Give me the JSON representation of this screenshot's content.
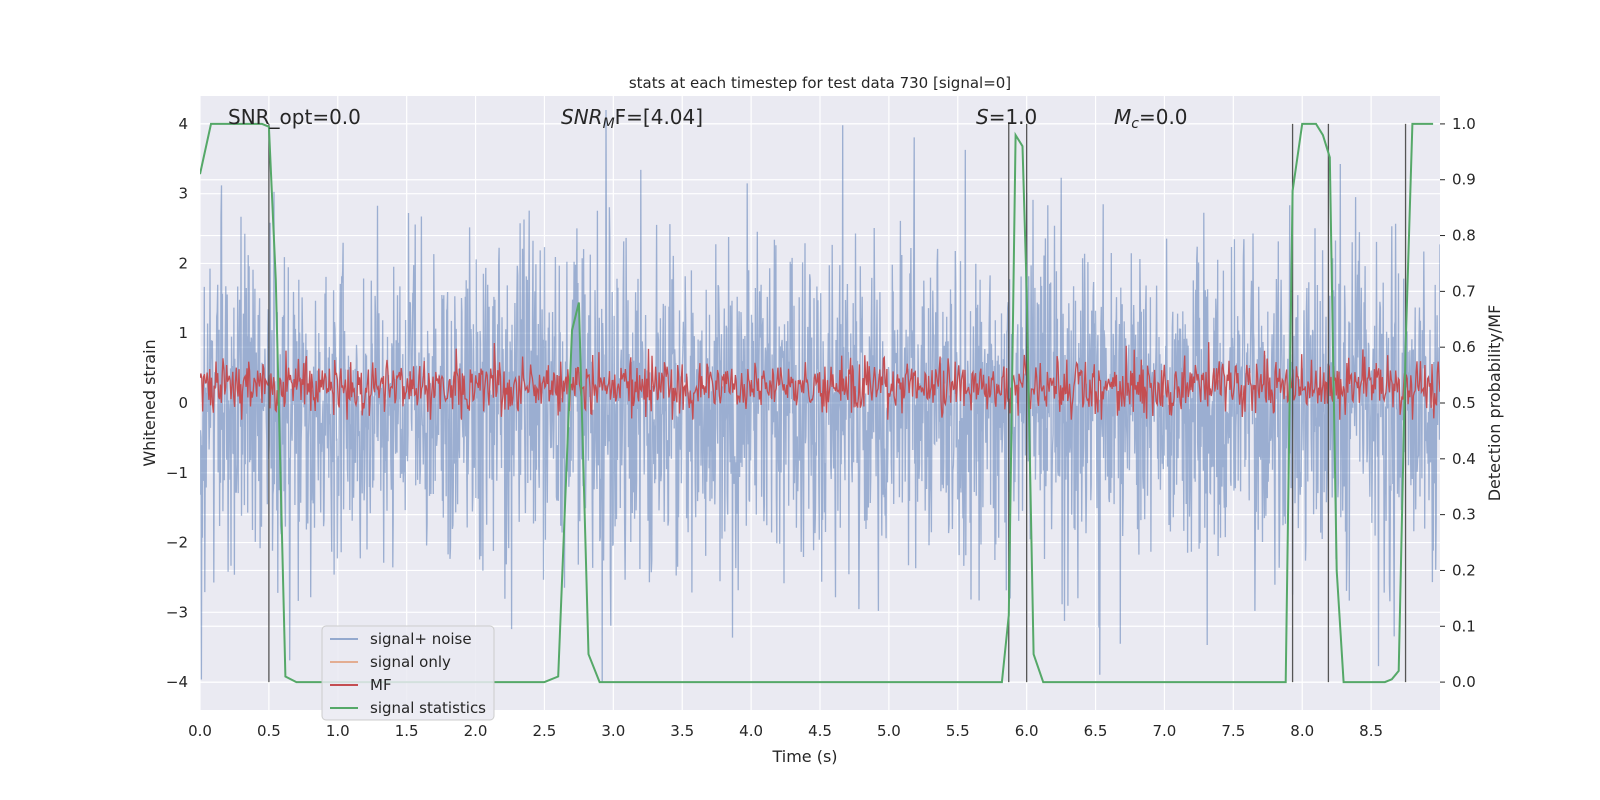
{
  "chart_data": {
    "type": "line",
    "title": "stats at each timestep for test data 730 [signal=0]",
    "xlabel": "Time (s)",
    "ylabel": "Whitened strain",
    "y2label": "Detection probability/MF",
    "xlim": [
      0.0,
      9.0
    ],
    "ylim": [
      -4.4,
      4.4
    ],
    "y2lim": [
      -0.05,
      1.05
    ],
    "xticks": [
      0.0,
      0.5,
      1.0,
      1.5,
      2.0,
      2.5,
      3.0,
      3.5,
      4.0,
      4.5,
      5.0,
      5.5,
      6.0,
      6.5,
      7.0,
      7.5,
      8.0,
      8.5
    ],
    "xtick_labels": [
      "0.0",
      "0.5",
      "1.0",
      "1.5",
      "2.0",
      "2.5",
      "3.0",
      "3.5",
      "4.0",
      "4.5",
      "5.0",
      "5.5",
      "6.0",
      "6.5",
      "7.0",
      "7.5",
      "8.0",
      "8.5"
    ],
    "yticks": [
      4,
      3,
      2,
      1,
      0,
      -1,
      -2,
      -3,
      -4
    ],
    "ytick_labels": [
      "4",
      "3",
      "2",
      "1",
      "0",
      "−1",
      "−2",
      "−3",
      "−4"
    ],
    "y2ticks": [
      1.0,
      0.9,
      0.8,
      0.7,
      0.6,
      0.5,
      0.4,
      0.3,
      0.2,
      0.1,
      0.0
    ],
    "y2tick_labels": [
      "1.0",
      "0.9",
      "0.8",
      "0.7",
      "0.6",
      "0.5",
      "0.4",
      "0.3",
      "0.2",
      "0.1",
      "0.0"
    ],
    "grid": true,
    "legend_position": "lower-left",
    "annotations": {
      "snr_opt": "SNR_opt=0.0",
      "snr_mf_sym": "SNR",
      "snr_mf_sub": "M",
      "snr_mf_rest": "F=[4.04]",
      "s_sym": "S",
      "s_rest": "=1.0",
      "mc_sym": "M",
      "mc_sub": "c",
      "mc_rest": "=0.0"
    },
    "series": [
      {
        "name": "signal+ noise",
        "color": "#4c72b0",
        "axis": "left",
        "noise_amplitude_std": 1.0
      },
      {
        "name": "signal only",
        "color": "#dd8452",
        "axis": "left",
        "values": []
      },
      {
        "name": "MF",
        "color": "#c44e52",
        "axis": "right",
        "mean": 0.53,
        "range": [
          0.47,
          0.63
        ]
      },
      {
        "name": "signal statistics",
        "color": "#55a868",
        "axis": "right",
        "x": [
          0.0,
          0.08,
          0.2,
          0.35,
          0.45,
          0.5,
          0.55,
          0.62,
          0.7,
          0.8,
          1.0,
          1.5,
          2.0,
          2.5,
          2.6,
          2.7,
          2.75,
          2.82,
          2.9,
          3.5,
          4.5,
          5.5,
          5.82,
          5.87,
          5.92,
          5.97,
          6.0,
          6.05,
          6.12,
          6.5,
          7.0,
          7.5,
          7.88,
          7.93,
          8.0,
          8.05,
          8.1,
          8.15,
          8.2,
          8.25,
          8.3,
          8.4,
          8.5,
          8.6,
          8.65,
          8.7,
          8.75,
          8.8,
          8.85,
          8.95
        ],
        "y": [
          0.91,
          1.0,
          1.0,
          1.0,
          1.0,
          0.995,
          0.72,
          0.01,
          0.0,
          0.0,
          0.0,
          0.0,
          0.0,
          0.0,
          0.01,
          0.63,
          0.68,
          0.05,
          0.0,
          0.0,
          0.0,
          0.0,
          0.0,
          0.12,
          0.98,
          0.96,
          0.7,
          0.05,
          0.0,
          0.0,
          0.0,
          0.0,
          0.0,
          0.88,
          1.0,
          1.0,
          1.0,
          0.98,
          0.94,
          0.2,
          0.0,
          0.0,
          0.0,
          0.0,
          0.005,
          0.02,
          0.6,
          1.0,
          1.0,
          1.0
        ]
      }
    ],
    "vertical_markers": [
      0.5,
      5.87,
      6.0,
      7.93,
      8.19,
      8.75
    ]
  }
}
